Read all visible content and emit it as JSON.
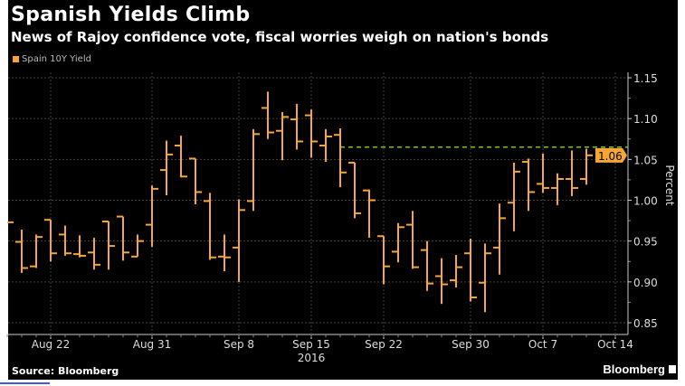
{
  "header": {
    "title": "Spanish Yields Climb",
    "subtitle": "News of Rajoy confidence vote, fiscal worries weigh on nation's bonds"
  },
  "footer": {
    "source": "Source: Bloomberg",
    "brand": "Bloomberg"
  },
  "colors": {
    "series": "#f7a534",
    "reference_line": "#7dc41e",
    "background": "#000000",
    "last_value_badge": "#f7a534"
  },
  "chart_data": {
    "type": "ohlc",
    "title": "Spanish Yields Climb",
    "subtitle": "News of Rajoy confidence vote, fiscal worries weigh on nation's bonds",
    "legend": {
      "position": "top-left",
      "entries": [
        "Spain 10Y Yield"
      ]
    },
    "series_name": "Spain 10Y Yield",
    "ylabel": "Percent",
    "y_axis_side": "right",
    "ylim": [
      0.85,
      1.15
    ],
    "y_ticks": [
      "0.85",
      "0.90",
      "0.95",
      "1.00",
      "1.05",
      "1.10",
      "1.15"
    ],
    "x_ticks": [
      {
        "label": "Aug 22",
        "date": "2016-08-22"
      },
      {
        "label": "Aug 31",
        "date": "2016-08-31"
      },
      {
        "label": "Sep 8",
        "date": "2016-09-08"
      },
      {
        "label": "Sep 15",
        "date": "2016-09-15"
      },
      {
        "label": "Sep 22",
        "date": "2016-09-22"
      },
      {
        "label": "Sep 30",
        "date": "2016-09-30"
      },
      {
        "label": "Oct 7",
        "date": "2016-10-07"
      },
      {
        "label": "Oct 14",
        "date": "2016-10-14"
      }
    ],
    "year_label": "2016",
    "grid": true,
    "reference_line": 1.065,
    "last_value_label": "1.06",
    "bars": [
      {
        "date": "2016-08-17",
        "close": 0.973
      },
      {
        "date": "2016-08-18",
        "open": 0.949,
        "high": 0.964,
        "low": 0.911,
        "close": 0.917
      },
      {
        "date": "2016-08-19",
        "open": 0.919,
        "high": 0.958,
        "low": 0.917,
        "close": 0.955
      },
      {
        "date": "2016-08-22",
        "open": 0.976,
        "high": 0.976,
        "low": 0.925,
        "close": 0.935
      },
      {
        "date": "2016-08-23",
        "open": 0.958,
        "high": 0.969,
        "low": 0.932,
        "close": 0.935
      },
      {
        "date": "2016-08-24",
        "open": 0.934,
        "high": 0.957,
        "low": 0.93,
        "close": 0.932
      },
      {
        "date": "2016-08-25",
        "open": 0.936,
        "high": 0.954,
        "low": 0.915,
        "close": 0.921
      },
      {
        "date": "2016-08-26",
        "open": 0.974,
        "high": 0.974,
        "low": 0.915,
        "close": 0.944
      },
      {
        "date": "2016-08-29",
        "open": 0.98,
        "high": 0.98,
        "low": 0.926,
        "close": 0.936
      },
      {
        "date": "2016-08-30",
        "open": 0.931,
        "high": 0.958,
        "low": 0.931,
        "close": 0.95
      },
      {
        "date": "2016-08-31",
        "open": 0.97,
        "high": 1.018,
        "low": 0.943,
        "close": 1.014
      },
      {
        "date": "2016-09-01",
        "open": 1.037,
        "high": 1.073,
        "low": 1.006,
        "close": 1.056
      },
      {
        "date": "2016-09-02",
        "open": 1.067,
        "high": 1.079,
        "low": 1.028,
        "close": 1.029
      },
      {
        "date": "2016-09-05",
        "open": 1.051,
        "high": 1.051,
        "low": 0.995,
        "close": 1.01
      },
      {
        "date": "2016-09-06",
        "open": 0.999,
        "high": 1.009,
        "low": 0.927,
        "close": 0.93
      },
      {
        "date": "2016-09-07",
        "open": 0.931,
        "high": 0.958,
        "low": 0.913,
        "close": 0.93
      },
      {
        "date": "2016-09-08",
        "open": 0.942,
        "high": 1.001,
        "low": 0.9,
        "close": 0.988
      },
      {
        "date": "2016-09-09",
        "open": 0.999,
        "high": 1.087,
        "low": 0.987,
        "close": 1.081
      },
      {
        "date": "2016-09-12",
        "open": 1.113,
        "high": 1.133,
        "low": 1.075,
        "close": 1.083
      },
      {
        "date": "2016-09-13",
        "open": 1.085,
        "high": 1.108,
        "low": 1.049,
        "close": 1.102
      },
      {
        "date": "2016-09-14",
        "open": 1.099,
        "high": 1.118,
        "low": 1.062,
        "close": 1.072
      },
      {
        "date": "2016-09-15",
        "open": 1.104,
        "high": 1.111,
        "low": 1.052,
        "close": 1.072
      },
      {
        "date": "2016-09-16",
        "open": 1.067,
        "high": 1.087,
        "low": 1.047,
        "close": 1.078
      },
      {
        "date": "2016-09-19",
        "open": 1.08,
        "high": 1.088,
        "low": 1.016,
        "close": 1.034
      },
      {
        "date": "2016-09-20",
        "open": 1.046,
        "high": 1.046,
        "low": 0.978,
        "close": 0.984
      },
      {
        "date": "2016-09-21",
        "open": 1.012,
        "high": 1.013,
        "low": 0.954,
        "close": 1.0
      },
      {
        "date": "2016-09-22",
        "open": 0.956,
        "high": 0.956,
        "low": 0.897,
        "close": 0.919
      },
      {
        "date": "2016-09-23",
        "open": 0.937,
        "high": 0.972,
        "low": 0.924,
        "close": 0.967
      },
      {
        "date": "2016-09-26",
        "open": 0.97,
        "high": 0.987,
        "low": 0.916,
        "close": 0.918
      },
      {
        "date": "2016-09-27",
        "open": 0.939,
        "high": 0.95,
        "low": 0.889,
        "close": 0.898
      },
      {
        "date": "2016-09-28",
        "open": 0.907,
        "high": 0.929,
        "low": 0.873,
        "close": 0.897
      },
      {
        "date": "2016-09-29",
        "open": 0.902,
        "high": 0.933,
        "low": 0.893,
        "close": 0.918
      },
      {
        "date": "2016-09-30",
        "open": 0.935,
        "high": 0.953,
        "low": 0.876,
        "close": 0.881
      },
      {
        "date": "2016-10-03",
        "open": 0.899,
        "high": 0.947,
        "low": 0.863,
        "close": 0.935
      },
      {
        "date": "2016-10-04",
        "open": 0.942,
        "high": 0.996,
        "low": 0.909,
        "close": 0.978
      },
      {
        "date": "2016-10-05",
        "open": 0.997,
        "high": 1.046,
        "low": 0.962,
        "close": 1.035
      },
      {
        "date": "2016-10-06",
        "open": 1.047,
        "high": 1.051,
        "low": 0.987,
        "close": 1.01
      },
      {
        "date": "2016-10-07",
        "open": 1.02,
        "high": 1.057,
        "low": 1.009,
        "close": 1.015
      },
      {
        "date": "2016-10-10",
        "open": 1.015,
        "high": 1.033,
        "low": 0.994,
        "close": 1.026
      },
      {
        "date": "2016-10-11",
        "open": 1.026,
        "high": 1.061,
        "low": 1.005,
        "close": 1.015
      },
      {
        "date": "2016-10-12",
        "open": 1.026,
        "high": 1.063,
        "low": 1.019,
        "close": 1.055
      }
    ]
  }
}
